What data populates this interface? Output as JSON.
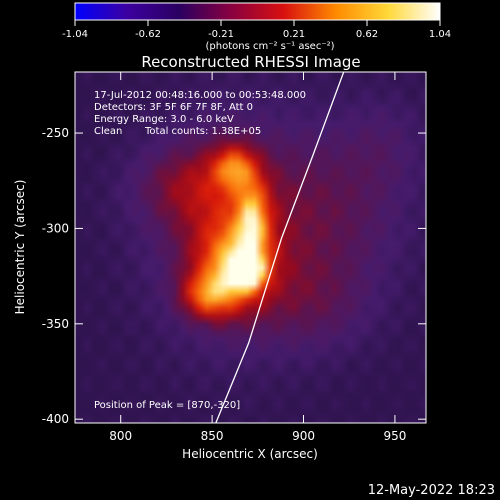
{
  "chart_data": {
    "type": "heatmap",
    "title": "Reconstructed RHESSI Image",
    "xlabel": "Heliocentric X (arcsec)",
    "ylabel": "Heliocentric Y (arcsec)",
    "xlim": [
      775,
      967
    ],
    "ylim": [
      -402,
      -218
    ],
    "x_ticks": [
      800,
      850,
      900,
      950
    ],
    "y_ticks": [
      -250,
      -300,
      -350,
      -400
    ],
    "colorbar": {
      "min": -1.04,
      "max": 1.04,
      "ticks": [
        "-1.04",
        "-0.62",
        "-0.21",
        "0.21",
        "0.62",
        "1.04"
      ],
      "units": "(photons cm⁻² s⁻¹ asec⁻²)",
      "colormap": [
        "#0000ff",
        "#3c00a0",
        "#2a0060",
        "#8a0040",
        "#d81010",
        "#ff8a00",
        "#ffd838",
        "#ffffff"
      ]
    },
    "annotations": {
      "time_range": "17-Jul-2012 00:48:16.000 to 00:53:48.000",
      "detectors": "Detectors: 3F 5F 6F 7F 8F, Att 0",
      "energy": "Energy Range: 3.0 - 6.0 keV",
      "method": "Clean",
      "counts": "Total counts: 1.38E+05",
      "peak": "Position of Peak = [870,-320]"
    },
    "peak": [
      870,
      -320
    ],
    "limb": [
      [
        852,
        -402
      ],
      [
        870,
        -360
      ],
      [
        888,
        -305
      ],
      [
        905,
        -262
      ],
      [
        922,
        -218
      ]
    ],
    "sources": [
      {
        "x": 868,
        "y": -322,
        "sx": 6,
        "sy": 6,
        "amp": 1.0
      },
      {
        "x": 862,
        "y": -318,
        "sx": 14,
        "sy": 16,
        "amp": 0.55
      },
      {
        "x": 872,
        "y": -295,
        "sx": 6,
        "sy": 14,
        "amp": 0.5
      },
      {
        "x": 862,
        "y": -268,
        "sx": 8,
        "sy": 8,
        "amp": 0.45
      },
      {
        "x": 848,
        "y": -335,
        "sx": 10,
        "sy": 8,
        "amp": 0.45
      },
      {
        "x": 860,
        "y": -300,
        "sx": 30,
        "sy": 40,
        "amp": 0.28
      },
      {
        "x": 840,
        "y": -278,
        "sx": 22,
        "sy": 14,
        "amp": 0.22
      },
      {
        "x": 918,
        "y": -290,
        "sx": 28,
        "sy": 32,
        "amp": 0.18
      },
      {
        "x": 905,
        "y": -340,
        "sx": 22,
        "sy": 18,
        "amp": 0.14
      },
      {
        "x": 945,
        "y": -255,
        "sx": 16,
        "sy": 18,
        "amp": 0.08
      }
    ]
  },
  "footer": {
    "timestamp": "12-May-2022 18:23"
  }
}
